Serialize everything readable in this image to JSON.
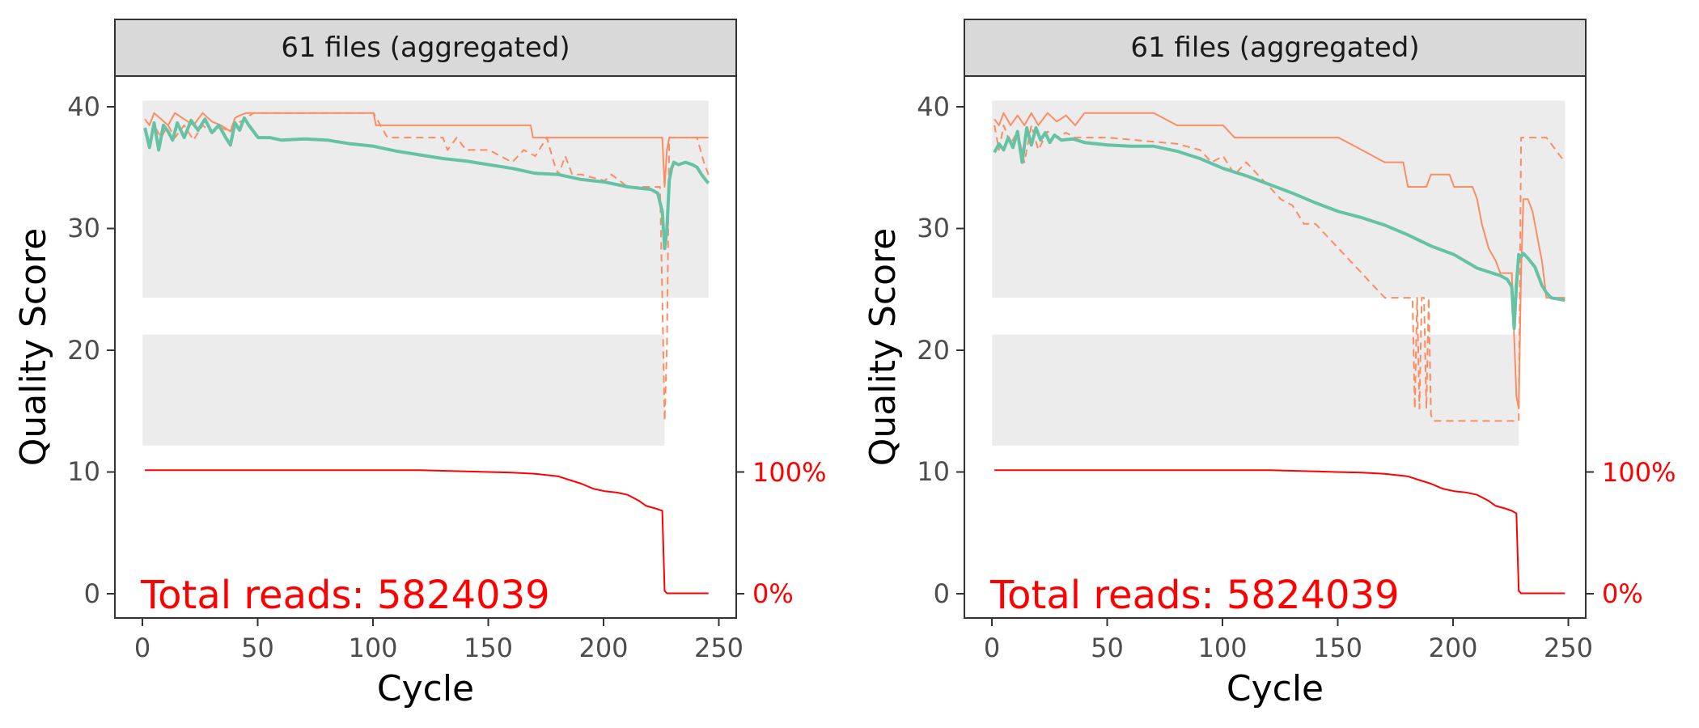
{
  "colors": {
    "mean": "#66c2a5",
    "quartile": "#fc8d62",
    "cumulative": "#ff0000",
    "strip_fill": "#d9d9d9",
    "frame": "#333333"
  },
  "chart_data": [
    {
      "type": "line",
      "panel_title": "61 files (aggregated)",
      "xlabel": "Cycle",
      "ylabel": "Quality Score",
      "xlim": [
        -12,
        257
      ],
      "ylim": [
        -2,
        42
      ],
      "x_ticks": [
        "0",
        "50",
        "100",
        "150",
        "200",
        "250"
      ],
      "y_ticks": [
        "0",
        "10",
        "20",
        "30",
        "40"
      ],
      "right_axis_labels": [
        "100%",
        "0%"
      ],
      "annotation": "Total reads: 5824039",
      "grid": false,
      "heatmap_bands": [
        [
          24,
          40,
          0,
          245
        ],
        [
          12,
          21,
          0,
          226
        ]
      ],
      "series": [
        {
          "style": "mean",
          "x": [
            1,
            3,
            5,
            7,
            9,
            11,
            13,
            15,
            18,
            21,
            24,
            27,
            30,
            33,
            36,
            38,
            40,
            42,
            44,
            46,
            48,
            50,
            55,
            60,
            70,
            80,
            90,
            100,
            110,
            120,
            130,
            140,
            150,
            160,
            170,
            180,
            190,
            200,
            210,
            215,
            220,
            223,
            225,
            226,
            227,
            228,
            229,
            230,
            232,
            235,
            238,
            240,
            242,
            244,
            245
          ],
          "y": [
            37.8,
            36.2,
            38.2,
            36.0,
            38.0,
            37.5,
            36.8,
            38.2,
            37.0,
            38.4,
            37.6,
            38.5,
            37.4,
            38.0,
            37.0,
            36.4,
            38.2,
            37.6,
            38.6,
            38.0,
            37.5,
            37.0,
            37.0,
            36.8,
            36.9,
            36.8,
            36.5,
            36.3,
            35.9,
            35.6,
            35.3,
            35.1,
            34.8,
            34.5,
            34.1,
            34.0,
            33.6,
            33.4,
            33.0,
            32.9,
            32.8,
            32.5,
            31.0,
            28.0,
            29.5,
            33.5,
            34.5,
            35.0,
            34.8,
            35.0,
            34.8,
            34.6,
            34.0,
            33.5,
            33.3
          ]
        },
        {
          "style": "quartile-solid",
          "x": [
            1,
            3,
            5,
            8,
            11,
            14,
            18,
            22,
            26,
            30,
            34,
            38,
            40,
            42,
            45,
            50,
            100,
            101,
            168,
            169,
            225,
            226,
            227,
            228,
            245
          ],
          "y": [
            38.5,
            38.0,
            39.0,
            38.5,
            38.0,
            39.0,
            38.5,
            38.0,
            39.0,
            38.3,
            38.0,
            37.5,
            38.6,
            38.8,
            39.0,
            39.0,
            39.0,
            38.0,
            38.0,
            37.0,
            37.0,
            33.0,
            36.0,
            37.0,
            37.0
          ]
        },
        {
          "style": "quartile-dashed",
          "x": [
            1,
            3,
            5,
            8,
            11,
            14,
            18,
            22,
            26,
            30,
            34,
            38,
            40,
            44,
            48,
            52,
            56,
            100,
            103,
            106,
            110,
            130,
            132,
            136,
            140,
            150,
            160,
            165,
            170,
            175,
            178,
            180,
            183,
            186,
            190,
            200,
            203,
            210,
            220,
            224,
            225,
            226,
            227,
            228,
            230,
            240,
            243,
            245
          ],
          "y": [
            37.5,
            36.5,
            38.0,
            37.0,
            38.0,
            37.0,
            38.0,
            36.8,
            38.0,
            37.4,
            37.8,
            37.5,
            38.0,
            38.5,
            39.0,
            39.0,
            39.0,
            39.0,
            38.0,
            37.0,
            37.0,
            37.0,
            36.0,
            37.0,
            36.0,
            36.0,
            35.0,
            36.0,
            35.5,
            37.0,
            35.0,
            34.0,
            35.5,
            34.0,
            34.0,
            33.5,
            34.0,
            33.0,
            33.0,
            33.0,
            24.0,
            14.0,
            20.0,
            37.0,
            37.0,
            37.0,
            35.0,
            34.0
          ]
        },
        {
          "style": "cumulative",
          "x": [
            1,
            120,
            140,
            160,
            170,
            180,
            185,
            190,
            195,
            200,
            205,
            210,
            215,
            218,
            220,
            222,
            225,
            226,
            227,
            245
          ],
          "y": [
            10.0,
            10.0,
            9.9,
            9.8,
            9.7,
            9.5,
            9.2,
            8.9,
            8.5,
            8.3,
            8.2,
            8.0,
            7.5,
            7.1,
            7.0,
            6.9,
            6.7,
            0.2,
            0.0,
            0.0
          ]
        }
      ]
    },
    {
      "type": "line",
      "panel_title": "61 files (aggregated)",
      "xlabel": "Cycle",
      "ylabel": "Quality Score",
      "xlim": [
        -12,
        257
      ],
      "ylim": [
        -2,
        42
      ],
      "x_ticks": [
        "0",
        "50",
        "100",
        "150",
        "200",
        "250"
      ],
      "y_ticks": [
        "0",
        "10",
        "20",
        "30",
        "40"
      ],
      "right_axis_labels": [
        "100%",
        "0%"
      ],
      "annotation": "Total reads: 5824039",
      "grid": false,
      "heatmap_bands": [
        [
          24,
          40,
          0,
          248
        ],
        [
          12,
          21,
          0,
          228
        ]
      ],
      "series": [
        {
          "style": "mean",
          "x": [
            1,
            3,
            5,
            7,
            9,
            11,
            13,
            15,
            17,
            19,
            21,
            23,
            25,
            27,
            30,
            35,
            40,
            50,
            60,
            70,
            80,
            90,
            100,
            110,
            120,
            130,
            140,
            150,
            160,
            170,
            180,
            190,
            200,
            210,
            215,
            220,
            223,
            225,
            226,
            227,
            228,
            229,
            230,
            232,
            235,
            238,
            240,
            242,
            245,
            248
          ],
          "y": [
            35.8,
            36.5,
            36.0,
            37.0,
            36.2,
            37.5,
            35.0,
            37.8,
            36.4,
            37.8,
            36.8,
            37.4,
            36.6,
            37.2,
            36.8,
            36.9,
            36.6,
            36.4,
            36.3,
            36.3,
            35.9,
            35.3,
            34.5,
            33.9,
            33.2,
            32.5,
            31.7,
            31.0,
            30.5,
            29.9,
            29.1,
            28.2,
            27.5,
            26.4,
            26.1,
            25.8,
            25.5,
            24.9,
            21.5,
            25.0,
            27.5,
            27.3,
            27.6,
            27.2,
            26.5,
            25.0,
            24.4,
            24.0,
            23.9,
            23.8
          ]
        },
        {
          "style": "quartile-solid",
          "x": [
            1,
            3,
            5,
            8,
            11,
            14,
            17,
            20,
            24,
            28,
            32,
            36,
            40,
            45,
            50,
            60,
            70,
            80,
            100,
            105,
            110,
            150,
            160,
            170,
            178,
            180,
            188,
            190,
            198,
            200,
            208,
            210,
            212,
            215,
            218,
            220,
            222,
            225,
            227,
            228,
            229,
            230,
            232,
            234,
            236,
            238,
            240,
            248
          ],
          "y": [
            38.5,
            38.0,
            39.0,
            38.0,
            38.8,
            38.0,
            39.0,
            38.0,
            39.0,
            38.3,
            38.8,
            38.0,
            39.0,
            39.0,
            39.0,
            39.0,
            39.0,
            38.0,
            38.0,
            37.0,
            37.0,
            37.0,
            36.0,
            35.0,
            35.0,
            33.0,
            33.0,
            34.0,
            34.0,
            33.0,
            33.0,
            32.0,
            30.0,
            28.0,
            27.0,
            26.0,
            26.0,
            26.0,
            16.0,
            15.0,
            26.0,
            32.0,
            32.0,
            31.0,
            29.0,
            27.0,
            24.0,
            24.0
          ]
        },
        {
          "style": "quartile-dashed",
          "x": [
            1,
            3,
            5,
            8,
            11,
            14,
            17,
            20,
            24,
            28,
            32,
            36,
            40,
            50,
            80,
            90,
            95,
            100,
            105,
            110,
            115,
            120,
            125,
            130,
            135,
            140,
            145,
            150,
            155,
            160,
            165,
            170,
            175,
            180,
            182,
            183,
            184,
            185,
            186,
            187,
            188,
            189,
            190,
            191,
            192,
            193,
            195,
            200,
            228,
            229,
            240,
            248
          ],
          "y": [
            38.0,
            36.0,
            38.0,
            36.5,
            37.5,
            35.0,
            38.0,
            36.0,
            37.5,
            37.0,
            37.4,
            37.0,
            37.0,
            37.0,
            36.5,
            36.0,
            35.0,
            35.5,
            34.0,
            35.0,
            34.0,
            33.0,
            32.0,
            31.5,
            30.0,
            30.0,
            29.0,
            28.0,
            27.0,
            26.0,
            25.0,
            24.0,
            24.0,
            24.0,
            24.0,
            15.0,
            24.0,
            15.0,
            24.0,
            24.0,
            15.0,
            24.0,
            14.5,
            14.0,
            14.0,
            14.0,
            14.0,
            14.0,
            14.0,
            37.0,
            37.0,
            35.0
          ]
        },
        {
          "style": "cumulative",
          "x": [
            1,
            120,
            140,
            160,
            170,
            180,
            185,
            190,
            195,
            200,
            205,
            210,
            215,
            218,
            220,
            222,
            225,
            227,
            228,
            229,
            248
          ],
          "y": [
            10.0,
            10.0,
            9.9,
            9.8,
            9.7,
            9.5,
            9.2,
            8.9,
            8.5,
            8.3,
            8.2,
            8.0,
            7.5,
            7.1,
            7.0,
            6.9,
            6.7,
            6.5,
            0.2,
            0.0,
            0.0
          ]
        }
      ]
    }
  ]
}
